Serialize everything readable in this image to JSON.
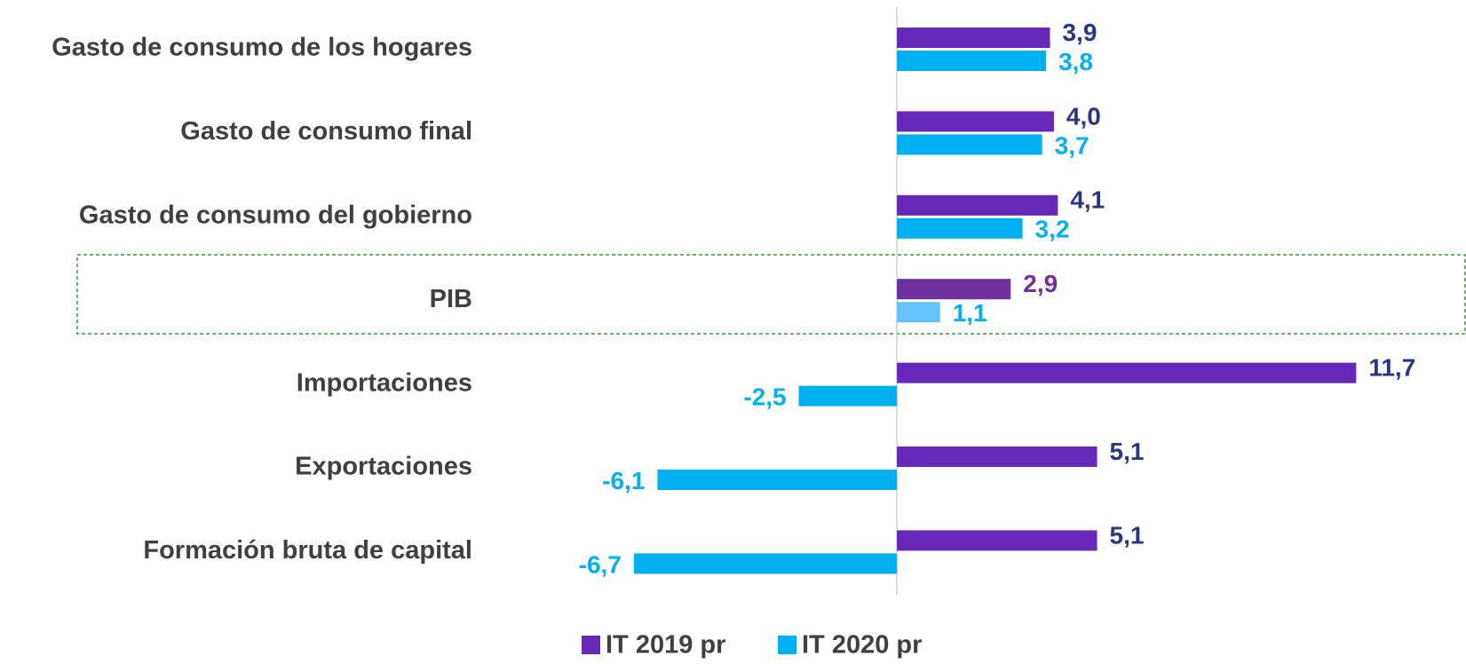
{
  "chart_data": {
    "type": "bar",
    "orientation": "horizontal",
    "categories": [
      "Gasto de consumo de los hogares",
      "Gasto de consumo final",
      "Gasto de consumo del gobierno",
      "PIB",
      "Importaciones",
      "Exportaciones",
      "Formación bruta de capital"
    ],
    "series": [
      {
        "name": "IT 2019 pr",
        "color": "#6628b8",
        "label_color": "#2b3585",
        "highlight_color": "#7030a0",
        "highlight_label_color": "#7030a0",
        "values": [
          3.9,
          4.0,
          4.1,
          2.9,
          11.7,
          5.1,
          5.1
        ],
        "value_labels": [
          "3,9",
          "4,0",
          "4,1",
          "2,9",
          "11,7",
          "5,1",
          "5,1"
        ]
      },
      {
        "name": "IT 2020 pr",
        "color": "#00b0f0",
        "label_color": "#00b0f0",
        "highlight_color": "#66c2ff",
        "highlight_label_color": "#00b0f0",
        "values": [
          3.8,
          3.7,
          3.2,
          1.1,
          -2.5,
          -6.1,
          -6.7
        ],
        "value_labels": [
          "3,8",
          "3,7",
          "3,2",
          "1,1",
          "-2,5",
          "-6,1",
          "-6,7"
        ]
      }
    ],
    "highlight_index": 3,
    "xlim": [
      -10,
      14
    ],
    "grid": false,
    "legend": "bottom"
  }
}
